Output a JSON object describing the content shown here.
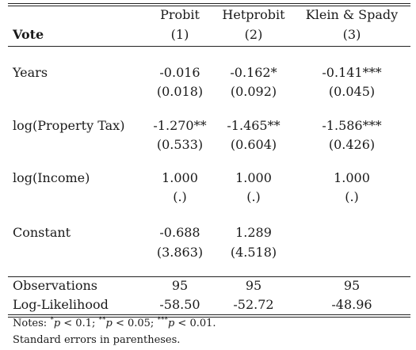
{
  "header": {
    "dep_var": "Vote",
    "columns": [
      {
        "model": "Probit",
        "num": "(1)"
      },
      {
        "model": "Hetprobit",
        "num": "(2)"
      },
      {
        "model": "Klein & Spady",
        "num": "(3)"
      }
    ]
  },
  "rows": [
    {
      "label": "Years",
      "coef": [
        "-0.016",
        "-0.162*",
        "-0.141***"
      ],
      "se": [
        "(0.018)",
        "(0.092)",
        "(0.045)"
      ]
    },
    {
      "label": "log(Property Tax)",
      "coef": [
        "-1.270**",
        "-1.465**",
        "-1.586***"
      ],
      "se": [
        "(0.533)",
        "(0.604)",
        "(0.426)"
      ]
    },
    {
      "label": "log(Income)",
      "coef": [
        "1.000",
        "1.000",
        "1.000"
      ],
      "se": [
        "(.)",
        "(.)",
        "(.)"
      ]
    },
    {
      "label": "Constant",
      "coef": [
        "-0.688",
        "1.289",
        ""
      ],
      "se": [
        "(3.863)",
        "(4.518)",
        ""
      ]
    }
  ],
  "stats": [
    {
      "label": "Observations",
      "values": [
        "95",
        "95",
        "95"
      ]
    },
    {
      "label": "Log-Likelihood",
      "values": [
        "-58.50",
        "-52.72",
        "-48.96"
      ]
    }
  ],
  "notes": {
    "prefix": "Notes:",
    "sig1_stars": "*",
    "sig1_p": "p",
    "sig1_rest": " < 0.1;",
    "sig2_stars": "**",
    "sig2_p": "p",
    "sig2_rest": " < 0.05;",
    "sig3_stars": "***",
    "sig3_p": "p",
    "sig3_rest": " < 0.01.",
    "line2": "Standard errors in parentheses."
  }
}
